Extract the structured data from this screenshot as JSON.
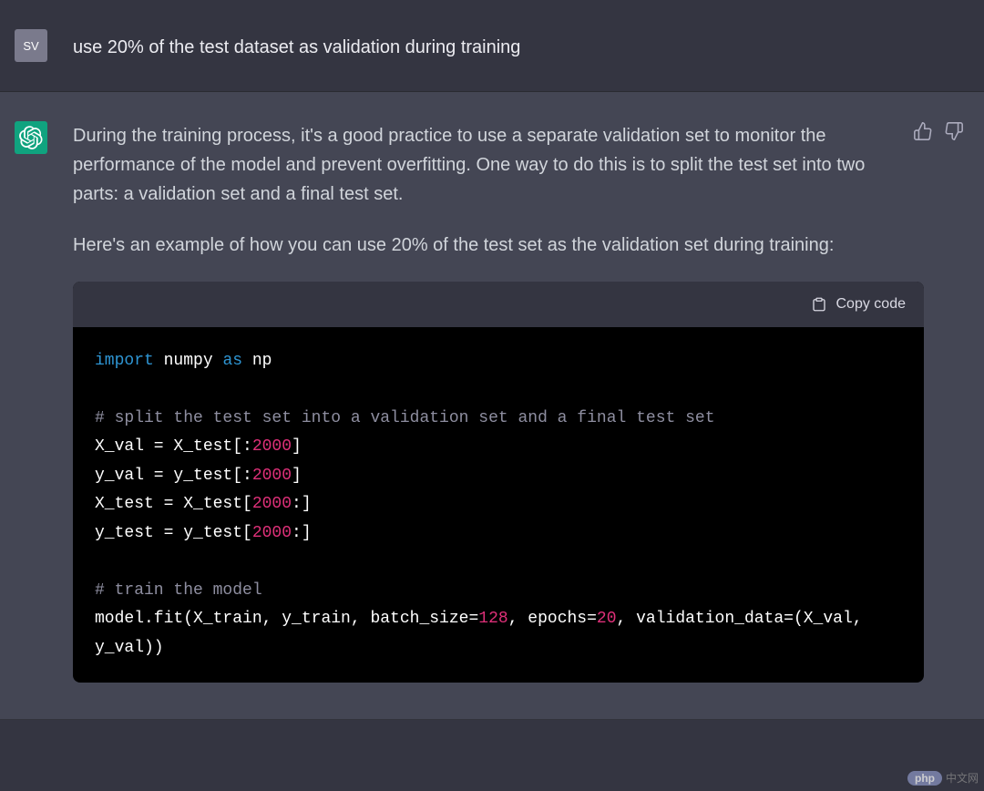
{
  "user": {
    "avatar_text": "SV",
    "message": "use 20% of the test dataset as validation during training"
  },
  "assistant": {
    "paragraph1": "During the training process, it's a good practice to use a separate validation set to monitor the performance of the model and prevent overfitting. One way to do this is to split the test set into two parts: a validation set and a final test set.",
    "paragraph2": "Here's an example of how you can use 20% of the test set as the validation set during training:",
    "code_copy_label": "Copy code",
    "code": {
      "type": "code",
      "language": "python",
      "background_color": "#000000",
      "header_background": "#343541",
      "text_color": "#ffffff",
      "keyword_color": "#2e95d3",
      "comment_color": "#8e8ea0",
      "number_color": "#df3079",
      "font_family": "monospace",
      "font_size_pt": 14,
      "tokens": [
        {
          "t": "import",
          "c": "kw"
        },
        {
          "t": " numpy ",
          "c": "plain"
        },
        {
          "t": "as",
          "c": "kw"
        },
        {
          "t": " np\n\n",
          "c": "plain"
        },
        {
          "t": "# split the test set into a validation set and a final test set\n",
          "c": "com"
        },
        {
          "t": "X_val = X_test[:",
          "c": "plain"
        },
        {
          "t": "2000",
          "c": "num"
        },
        {
          "t": "]\n",
          "c": "plain"
        },
        {
          "t": "y_val = y_test[:",
          "c": "plain"
        },
        {
          "t": "2000",
          "c": "num"
        },
        {
          "t": "]\n",
          "c": "plain"
        },
        {
          "t": "X_test = X_test[",
          "c": "plain"
        },
        {
          "t": "2000",
          "c": "num"
        },
        {
          "t": ":]\n",
          "c": "plain"
        },
        {
          "t": "y_test = y_test[",
          "c": "plain"
        },
        {
          "t": "2000",
          "c": "num"
        },
        {
          "t": ":]\n\n",
          "c": "plain"
        },
        {
          "t": "# train the model\n",
          "c": "com"
        },
        {
          "t": "model.fit(X_train, y_train, batch_size=",
          "c": "plain"
        },
        {
          "t": "128",
          "c": "num"
        },
        {
          "t": ", epochs=",
          "c": "plain"
        },
        {
          "t": "20",
          "c": "num"
        },
        {
          "t": ", validation_data=(X_val, y_val))",
          "c": "plain"
        }
      ]
    }
  },
  "colors": {
    "user_bg": "#343541",
    "assistant_bg": "#444654",
    "user_avatar_bg": "#7a7a8c",
    "ai_avatar_bg": "#10a37f",
    "body_text": "#d1d5db",
    "icon_stroke": "#acacbe"
  },
  "watermark": {
    "pill": "php",
    "text": "中文网"
  }
}
